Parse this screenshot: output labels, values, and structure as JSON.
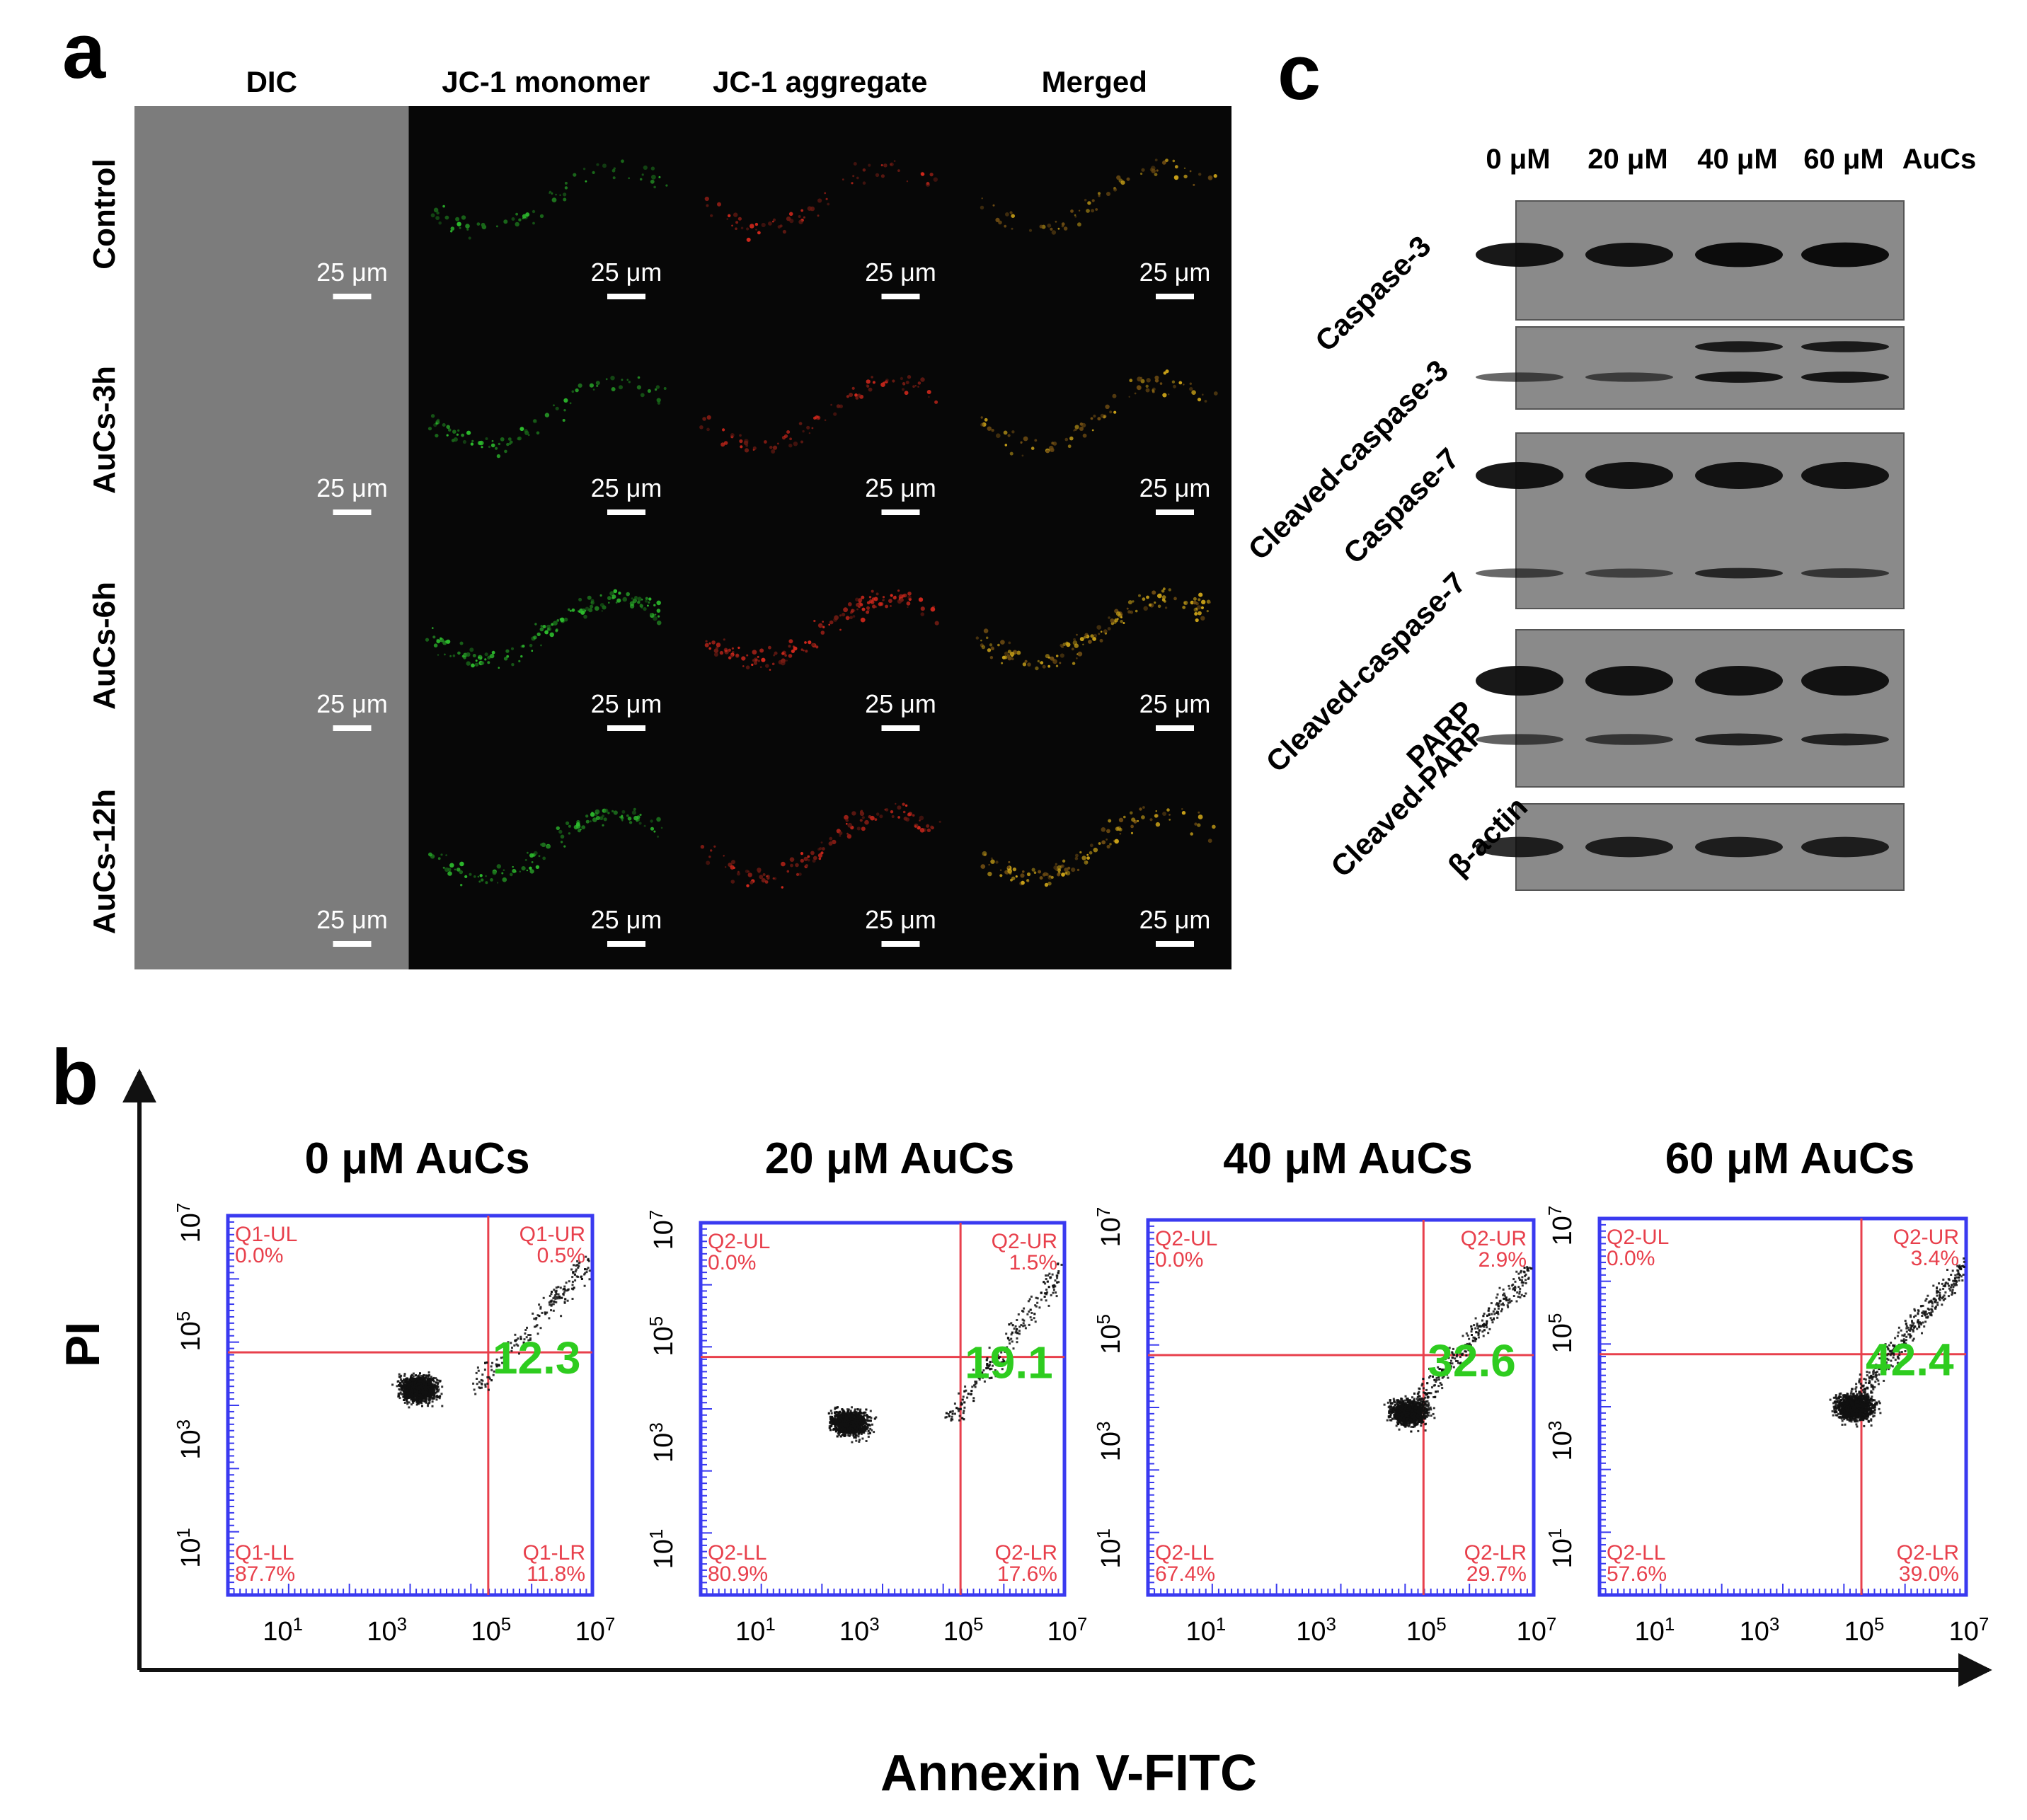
{
  "panel_a": {
    "letter": "a",
    "columns": [
      "DIC",
      "JC-1 monomer",
      "JC-1 aggregate",
      "Merged"
    ],
    "rows": [
      "Control",
      "AuCs-3h",
      "AuCs-6h",
      "AuCs-12h"
    ],
    "scale_bar": "25 μm"
  },
  "panel_c": {
    "letter": "c",
    "lanes": [
      "0 μM",
      "20 μM",
      "40 μM",
      "60 μM"
    ],
    "lane_suffix": "AuCs",
    "bands": [
      "Caspase-3",
      "Cleaved-caspase-3",
      "Caspase-7",
      "Cleaved-caspase-7",
      "PARP",
      "Cleaved-PARP",
      "β-actin"
    ]
  },
  "panel_b": {
    "letter": "b",
    "y_axis_label": "PI",
    "x_axis_label": "Annexin V-FITC",
    "tick_labels": [
      "10",
      "10",
      "10",
      "10"
    ],
    "tick_exponents": [
      "1",
      "3",
      "5",
      "7"
    ],
    "colors": {
      "frame": "#3a3af0",
      "gate": "#e8404c",
      "quad_text": "#e8404c",
      "apoptosis_value": "#2ecc1f",
      "events": "#111111"
    }
  },
  "chart_data": [
    {
      "type": "scatter",
      "title": "0 μM AuCs",
      "xlabel": "Annexin V-FITC",
      "ylabel": "PI",
      "xscale": "log",
      "yscale": "log",
      "xlim": [
        1,
        10000000
      ],
      "ylim": [
        1,
        10000000
      ],
      "quadrants": [
        {
          "label": "Q1-UL",
          "value": "0.0%"
        },
        {
          "label": "Q1-UR",
          "value": "0.5%"
        },
        {
          "label": "Q1-LL",
          "value": "87.7%"
        },
        {
          "label": "Q1-LR",
          "value": "11.8%"
        }
      ],
      "apoptosis_total": "12.3"
    },
    {
      "type": "scatter",
      "title": "20 μM AuCs",
      "xlabel": "Annexin V-FITC",
      "ylabel": "PI",
      "xscale": "log",
      "yscale": "log",
      "xlim": [
        1,
        10000000
      ],
      "ylim": [
        1,
        10000000
      ],
      "quadrants": [
        {
          "label": "Q2-UL",
          "value": "0.0%"
        },
        {
          "label": "Q2-UR",
          "value": "1.5%"
        },
        {
          "label": "Q2-LL",
          "value": "80.9%"
        },
        {
          "label": "Q2-LR",
          "value": "17.6%"
        }
      ],
      "apoptosis_total": "19.1"
    },
    {
      "type": "scatter",
      "title": "40 μM AuCs",
      "xlabel": "Annexin V-FITC",
      "ylabel": "PI",
      "xscale": "log",
      "yscale": "log",
      "xlim": [
        1,
        10000000
      ],
      "ylim": [
        1,
        10000000
      ],
      "quadrants": [
        {
          "label": "Q2-UL",
          "value": "0.0%"
        },
        {
          "label": "Q2-UR",
          "value": "2.9%"
        },
        {
          "label": "Q2-LL",
          "value": "67.4%"
        },
        {
          "label": "Q2-LR",
          "value": "29.7%"
        }
      ],
      "apoptosis_total": "32.6"
    },
    {
      "type": "scatter",
      "title": "60 μM AuCs",
      "xlabel": "Annexin V-FITC",
      "ylabel": "PI",
      "xscale": "log",
      "yscale": "log",
      "xlim": [
        1,
        10000000
      ],
      "ylim": [
        1,
        10000000
      ],
      "quadrants": [
        {
          "label": "Q2-UL",
          "value": "0.0%"
        },
        {
          "label": "Q2-UR",
          "value": "3.4%"
        },
        {
          "label": "Q2-LL",
          "value": "57.6%"
        },
        {
          "label": "Q2-LR",
          "value": "39.0%"
        }
      ],
      "apoptosis_total": "42.4"
    }
  ]
}
